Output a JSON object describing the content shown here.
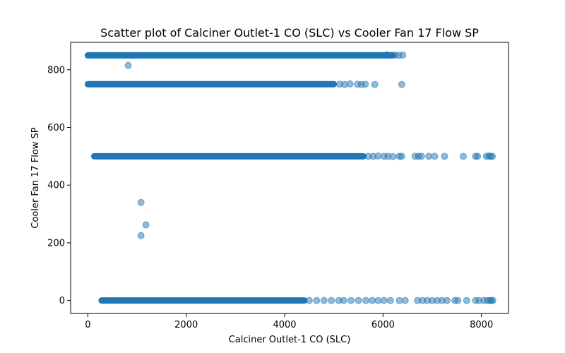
{
  "chart_data": {
    "type": "scatter",
    "title": "Scatter plot of Calciner Outlet-1 CO (SLC) vs Cooler Fan 17 Flow SP",
    "xlabel": "Calciner Outlet-1 CO (SLC)",
    "ylabel": "Cooler Fan 17 Flow SP",
    "xlim": [
      -350,
      8550
    ],
    "ylim": [
      -45,
      895
    ],
    "xticks": [
      0,
      2000,
      4000,
      6000,
      8000
    ],
    "yticks": [
      0,
      200,
      400,
      600,
      800
    ],
    "grid": false,
    "marker_color": "#1f77b4",
    "marker_alpha": 0.5,
    "dense_bands": [
      {
        "y": 850,
        "x_start": 0,
        "x_end": 6200
      },
      {
        "y": 750,
        "x_start": 0,
        "x_end": 5000
      },
      {
        "y": 500,
        "x_start": 130,
        "x_end": 5600
      },
      {
        "y": 0,
        "x_start": 280,
        "x_end": 4400
      }
    ],
    "series": [
      {
        "points": [
          [
            820,
            815
          ],
          [
            1080,
            340
          ],
          [
            1180,
            262
          ],
          [
            1080,
            225
          ],
          [
            6080,
            852
          ],
          [
            6160,
            850
          ],
          [
            6250,
            851
          ],
          [
            6320,
            850
          ],
          [
            6400,
            851
          ],
          [
            5120,
            750
          ],
          [
            5220,
            749
          ],
          [
            5330,
            751
          ],
          [
            5480,
            750
          ],
          [
            5560,
            749
          ],
          [
            5640,
            750
          ],
          [
            5830,
            749
          ],
          [
            6380,
            749
          ],
          [
            5700,
            500
          ],
          [
            5800,
            500
          ],
          [
            5900,
            501
          ],
          [
            6020,
            500
          ],
          [
            6100,
            500
          ],
          [
            6200,
            499
          ],
          [
            6330,
            500
          ],
          [
            6380,
            500
          ],
          [
            6650,
            500
          ],
          [
            6720,
            500
          ],
          [
            6780,
            500
          ],
          [
            6930,
            500
          ],
          [
            7050,
            500
          ],
          [
            7250,
            500
          ],
          [
            7630,
            500
          ],
          [
            7880,
            500
          ],
          [
            7920,
            500
          ],
          [
            8100,
            500
          ],
          [
            8150,
            501
          ],
          [
            8190,
            500
          ],
          [
            8220,
            500
          ],
          [
            4500,
            0
          ],
          [
            4650,
            0
          ],
          [
            4800,
            0
          ],
          [
            4950,
            0
          ],
          [
            5100,
            0
          ],
          [
            5200,
            0
          ],
          [
            5350,
            0
          ],
          [
            5500,
            0
          ],
          [
            5650,
            0
          ],
          [
            5780,
            0
          ],
          [
            5900,
            0
          ],
          [
            6020,
            0
          ],
          [
            6150,
            0
          ],
          [
            6330,
            0
          ],
          [
            6450,
            0
          ],
          [
            6700,
            0
          ],
          [
            6800,
            0
          ],
          [
            6900,
            0
          ],
          [
            7000,
            0
          ],
          [
            7100,
            0
          ],
          [
            7200,
            0
          ],
          [
            7300,
            0
          ],
          [
            7460,
            0
          ],
          [
            7520,
            0
          ],
          [
            7700,
            0
          ],
          [
            7880,
            0
          ],
          [
            7950,
            0
          ],
          [
            8050,
            0
          ],
          [
            8120,
            0
          ],
          [
            8170,
            0
          ],
          [
            8200,
            0
          ],
          [
            8230,
            0
          ]
        ]
      }
    ]
  }
}
